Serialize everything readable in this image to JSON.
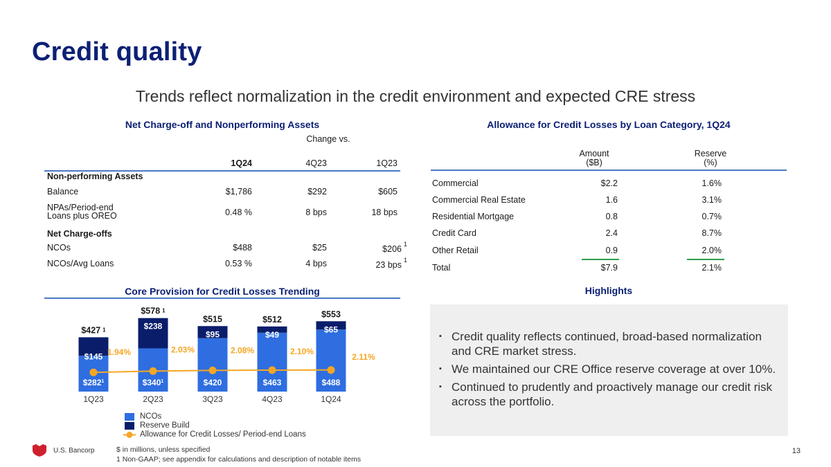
{
  "title": "Credit quality",
  "subtitle": "Trends reflect normalization in the credit environment and expected CRE stress",
  "nco_table": {
    "heading": "Net Charge-off and Nonperforming Assets",
    "change_vs": "Change vs.",
    "columns": [
      "1Q24",
      "4Q23",
      "1Q23"
    ],
    "rows": [
      {
        "type": "section",
        "label": "Non-performing Assets"
      },
      {
        "type": "data",
        "label": "Balance",
        "values": [
          "$1,786",
          "$292",
          "$605"
        ]
      },
      {
        "type": "data",
        "label": "NPAs/Period-end\nLoans plus OREO",
        "values": [
          "0.48 %",
          "8 bps",
          "18 bps"
        ]
      },
      {
        "type": "section",
        "label": "Net Charge-offs"
      },
      {
        "type": "data",
        "label": "NCOs",
        "values": [
          "$488",
          "$25",
          "$206"
        ],
        "footnote": "1"
      },
      {
        "type": "data",
        "label": "NCOs/Avg Loans",
        "values": [
          "0.53 %",
          "4 bps",
          "23 bps"
        ],
        "footnote": "1"
      }
    ]
  },
  "acl_table": {
    "heading": "Allowance for Credit Losses by Loan Category, 1Q24",
    "col_amount": "Amount\n($B)",
    "col_reserve": "Reserve\n(%)",
    "rows": [
      {
        "label": "Commercial",
        "amount": "$2.2",
        "reserve": "1.6%"
      },
      {
        "label": "Commercial Real Estate",
        "amount": "1.6",
        "reserve": "3.1%"
      },
      {
        "label": "Residential Mortgage",
        "amount": "0.8",
        "reserve": "0.7%"
      },
      {
        "label": "Credit Card",
        "amount": "2.4",
        "reserve": "8.7%"
      },
      {
        "label": "Other Retail",
        "amount": "0.9",
        "reserve": "2.0%"
      },
      {
        "label": "Total",
        "amount": "$7.9",
        "reserve": "2.1%"
      }
    ]
  },
  "chart_heading": "Core Provision for Credit Losses Trending",
  "chart_data": {
    "type": "bar",
    "stacked": true,
    "categories": [
      "1Q23",
      "2Q23",
      "3Q23",
      "4Q23",
      "1Q24"
    ],
    "series": [
      {
        "name": "NCOs",
        "values": [
          282,
          340,
          420,
          463,
          488
        ],
        "labels": [
          "$282",
          "$340",
          "$420",
          "$463",
          "$488"
        ],
        "label_footnotes": [
          "1",
          "1",
          "",
          "",
          ""
        ],
        "color": "#2f6ee0"
      },
      {
        "name": "Reserve Build",
        "values": [
          145,
          238,
          95,
          49,
          65
        ],
        "labels": [
          "$145",
          "$238",
          "$95",
          "$49",
          "$65"
        ],
        "color": "#0a1d6b"
      }
    ],
    "totals": [
      "$427",
      "$578",
      "$515",
      "$512",
      "$553"
    ],
    "total_footnotes": [
      "1",
      "1",
      "",
      "",
      ""
    ],
    "line_series": {
      "name": "Allowance for Credit Losses/ Period-end Loans",
      "values": [
        1.94,
        2.03,
        2.08,
        2.1,
        2.11
      ],
      "labels": [
        "1.94%",
        "2.03%",
        "2.08%",
        "2.10%",
        "2.11%"
      ],
      "color": "#f5a623"
    },
    "ylim": [
      0,
      620
    ]
  },
  "highlights": {
    "heading": "Highlights",
    "bullets": [
      "Credit quality reflects continued, broad-based normalization and CRE market stress.",
      "We maintained our CRE Office reserve coverage at over 10%.",
      "Continued to prudently and proactively manage our credit risk across the portfolio."
    ]
  },
  "footer": {
    "company": "U.S. Bancorp",
    "note1": "$ in millions, unless specified",
    "note2": "1 Non-GAAP; see appendix for calculations and description of notable items",
    "page": "13"
  },
  "colors": {
    "navy": "#0c2074",
    "accent_blue": "#4a78c8",
    "logo_red": "#d0202e"
  }
}
